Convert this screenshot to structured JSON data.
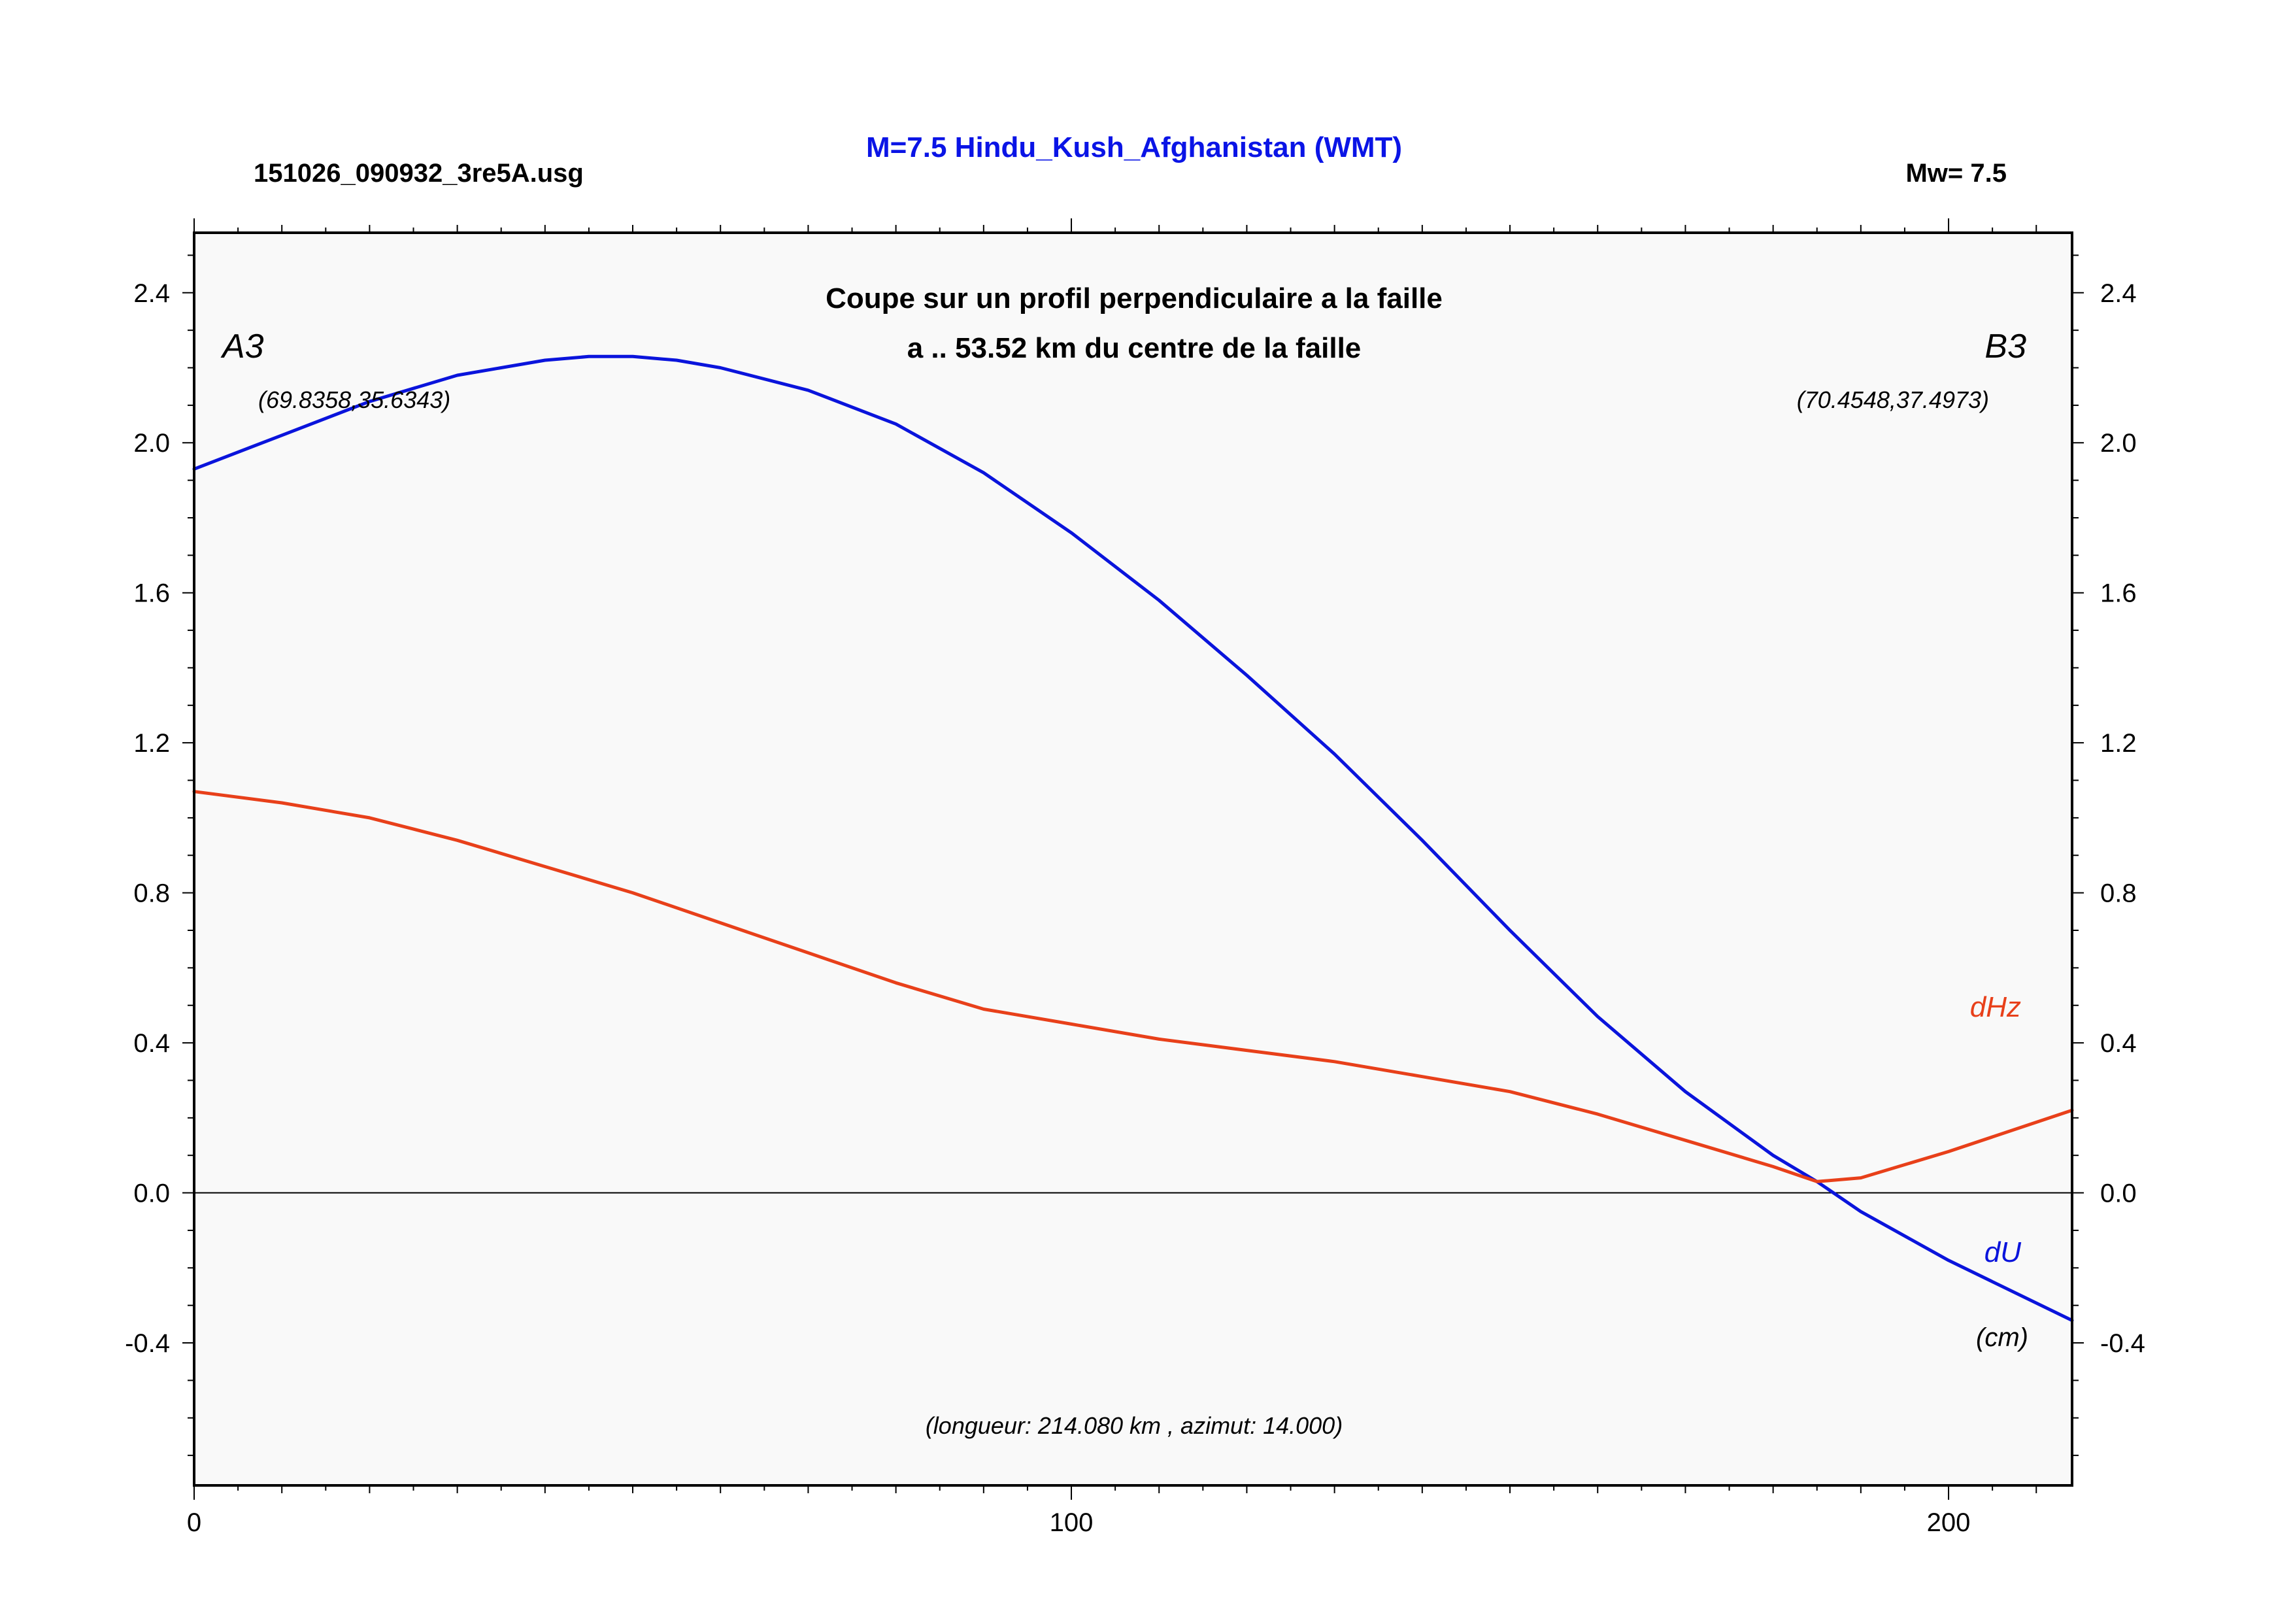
{
  "header": {
    "file_id": "151026_090932_3re5A.usg",
    "title": "M=7.5 Hindu_Kush_Afghanistan (WMT)",
    "magnitude": "Mw= 7.5"
  },
  "colors": {
    "du": "#0a14dc",
    "dhz": "#e8401a",
    "title": "#0a14e6",
    "plot_bg": "#f9f9f9"
  },
  "chart_data": {
    "type": "line",
    "title": "Coupe sur un profil perpendiculaire a la faille",
    "subtitle": "a .. 53.52 km du centre de la faille",
    "xlim": [
      0,
      214.08
    ],
    "ylim": [
      -0.78,
      2.56
    ],
    "grid": false,
    "x_ticks": [
      "0",
      "100",
      "200"
    ],
    "y_ticks": [
      "2.4",
      "2.0",
      "1.6",
      "1.2",
      "0.8",
      "0.4",
      "0.0",
      "-0.4"
    ],
    "endpoint_start": {
      "label": "A3",
      "coords": "(69.8358,35.6343)"
    },
    "endpoint_end": {
      "label": "B3",
      "coords": "(70.4548,37.4973)"
    },
    "unit_label": "(cm)",
    "profile_info": "(longueur: 214.080 km , azimut: 14.000)",
    "series": [
      {
        "name": "dU",
        "x": [
          0,
          10,
          20,
          30,
          40,
          45,
          50,
          55,
          60,
          70,
          80,
          90,
          100,
          110,
          120,
          130,
          140,
          150,
          160,
          170,
          180,
          185,
          190,
          200,
          214.08
        ],
        "y": [
          1.93,
          2.02,
          2.11,
          2.18,
          2.22,
          2.23,
          2.23,
          2.22,
          2.2,
          2.14,
          2.05,
          1.92,
          1.76,
          1.58,
          1.38,
          1.17,
          0.94,
          0.7,
          0.47,
          0.27,
          0.1,
          0.03,
          -0.05,
          -0.18,
          -0.34
        ]
      },
      {
        "name": "dHz",
        "x": [
          0,
          10,
          20,
          30,
          40,
          50,
          60,
          70,
          80,
          90,
          100,
          110,
          120,
          130,
          140,
          150,
          160,
          170,
          180,
          185,
          190,
          200,
          214.08
        ],
        "y": [
          1.07,
          1.04,
          1.0,
          0.94,
          0.87,
          0.8,
          0.72,
          0.64,
          0.56,
          0.49,
          0.45,
          0.41,
          0.38,
          0.35,
          0.31,
          0.27,
          0.21,
          0.14,
          0.07,
          0.03,
          0.04,
          0.11,
          0.22
        ]
      }
    ]
  }
}
